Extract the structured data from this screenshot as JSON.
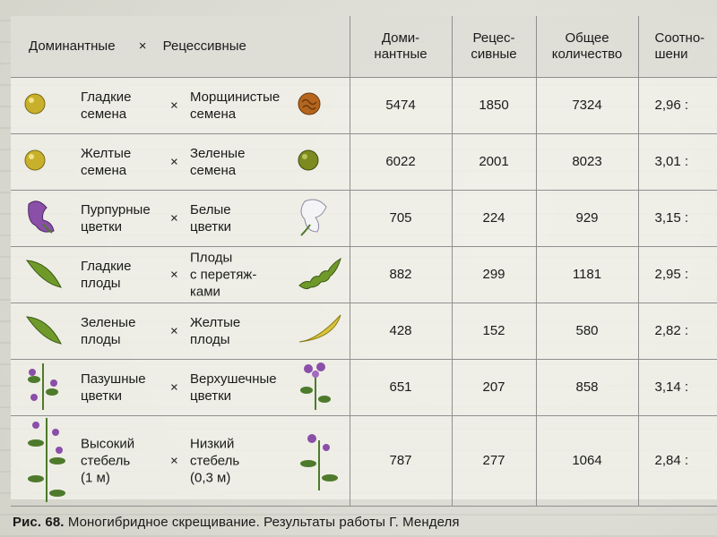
{
  "header": {
    "dominant": "Доминантные",
    "cross": "×",
    "recessive": "Рецессивные",
    "col_dominant": "Доми-\nнантные",
    "col_recessive": "Рецес-\nсивные",
    "col_total": "Общее\nколичество",
    "col_ratio": "Соотно-\nшени"
  },
  "rows": [
    {
      "dominant": "Гладкие\nсемена",
      "dominant_icon": "smooth-yellow-pea-icon",
      "recessive": "Морщинистые\nсемена",
      "recessive_icon": "wrinkled-pea-icon",
      "dom_count": "5474",
      "rec_count": "1850",
      "total": "7324",
      "ratio": "2,96 :"
    },
    {
      "dominant": "Желтые\nсемена",
      "dominant_icon": "yellow-pea-icon",
      "recessive": "Зеленые\nсемена",
      "recessive_icon": "green-pea-icon",
      "dom_count": "6022",
      "rec_count": "2001",
      "total": "8023",
      "ratio": "3,01 :"
    },
    {
      "dominant": "Пурпурные\nцветки",
      "dominant_icon": "purple-flower-icon",
      "recessive": "Белые\nцветки",
      "recessive_icon": "white-flower-icon",
      "dom_count": "705",
      "rec_count": "224",
      "total": "929",
      "ratio": "3,15 :"
    },
    {
      "dominant": "Гладкие\nплоды",
      "dominant_icon": "smooth-pod-icon",
      "recessive": "Плоды\nс перетяж-\nками",
      "recessive_icon": "constricted-pod-icon",
      "dom_count": "882",
      "rec_count": "299",
      "total": "1181",
      "ratio": "2,95 :"
    },
    {
      "dominant": "Зеленые\nплоды",
      "dominant_icon": "green-pod-icon",
      "recessive": "Желтые\nплоды",
      "recessive_icon": "yellow-pod-icon",
      "dom_count": "428",
      "rec_count": "152",
      "total": "580",
      "ratio": "2,82 :"
    },
    {
      "dominant": "Пазушные\nцветки",
      "dominant_icon": "axial-flowers-icon",
      "recessive": "Верхушечные\nцветки",
      "recessive_icon": "terminal-flowers-icon",
      "dom_count": "651",
      "rec_count": "207",
      "total": "858",
      "ratio": "3,14 :"
    },
    {
      "dominant": "Высокий\nстебель\n(1 м)",
      "dominant_icon": "tall-stem-icon",
      "recessive": "Низкий\nстебель\n(0,3 м)",
      "recessive_icon": "short-stem-icon",
      "dom_count": "787",
      "rec_count": "277",
      "total": "1064",
      "ratio": "2,84 :"
    }
  ],
  "caption": {
    "label": "Рис. 68.",
    "text": " Моногибридное скрещивание. Результаты работы Г. Менделя"
  },
  "colors": {
    "pea_yellow": "#c9b02a",
    "pea_green": "#7d8a1f",
    "wrinkled": "#b5651d",
    "pod_green": "#6f9a2a",
    "pod_yellow": "#d8c53a",
    "purple": "#8a4fa8",
    "leaf": "#4e7a2c"
  }
}
